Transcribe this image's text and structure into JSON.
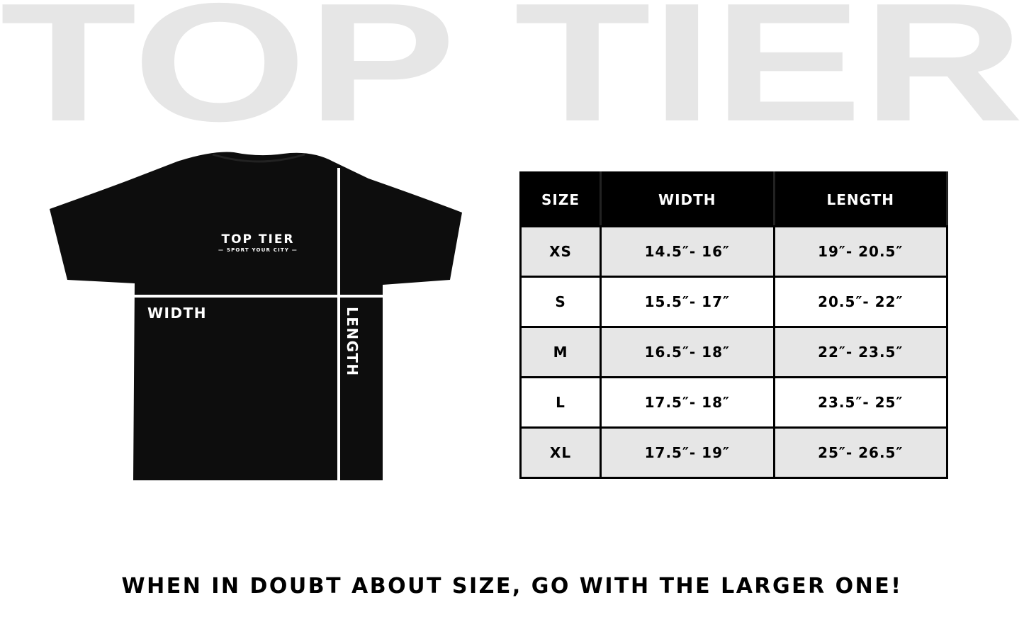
{
  "background_title": "TOP TIER",
  "shirt": {
    "logo_title": "TOP TIER",
    "logo_tagline": "— SPORT YOUR CITY —",
    "width_label": "WIDTH",
    "length_label": "LENGTH"
  },
  "size_table": {
    "headers": [
      "SIZE",
      "WIDTH",
      "LENGTH"
    ],
    "rows": [
      [
        "XS",
        "14.5″- 16″",
        "19″- 20.5″"
      ],
      [
        "S",
        "15.5″- 17″",
        "20.5″- 22″"
      ],
      [
        "M",
        "16.5″- 18″",
        "22″- 23.5″"
      ],
      [
        "L",
        "17.5″- 18″",
        "23.5″- 25″"
      ],
      [
        "XL",
        "17.5″- 19″",
        "25″- 26.5″"
      ]
    ]
  },
  "note": "WHEN IN DOUBT ABOUT SIZE, GO WITH THE LARGER ONE!",
  "colors": {
    "watermark": "#e6e6e6",
    "shirt": "#0d0d0d",
    "row_alt": "#e6e6e6"
  }
}
